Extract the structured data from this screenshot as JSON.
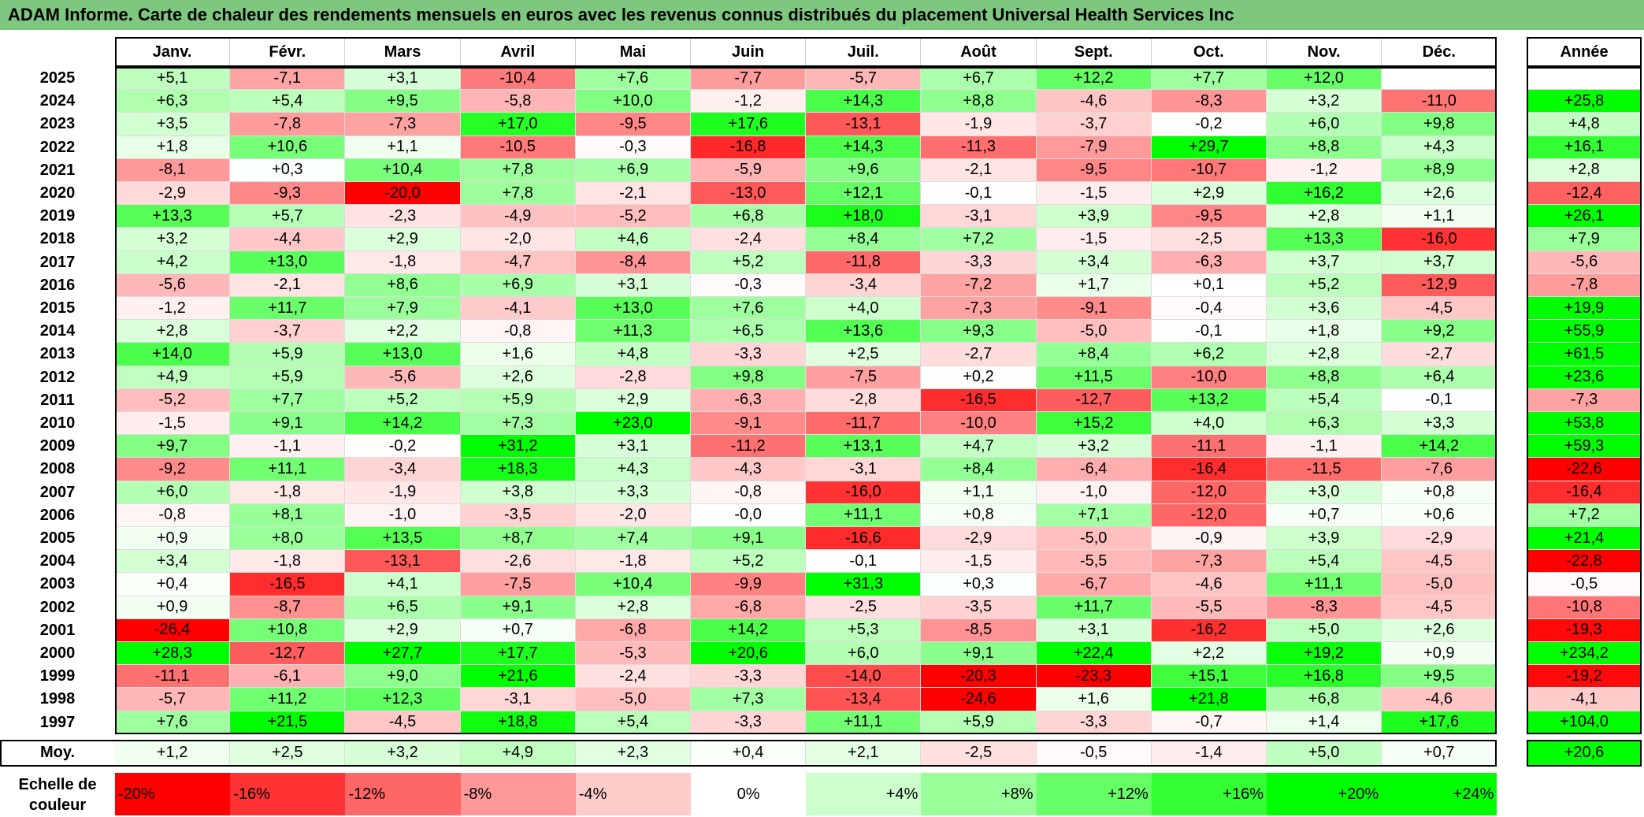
{
  "title": "ADAM Informe. Carte de chaleur des rendements mensuels en euros avec les revenus connus distribués du placement Universal Health Services Inc",
  "chart_data": {
    "type": "heatmap",
    "months": [
      "Janv.",
      "Févr.",
      "Mars",
      "Avril",
      "Mai",
      "Juin",
      "Juil.",
      "Août",
      "Sept.",
      "Oct.",
      "Nov.",
      "Déc."
    ],
    "year_header": "Année",
    "rows": [
      {
        "year": "2025",
        "values": [
          "+5,1",
          "-7,1",
          "+3,1",
          "-10,4",
          "+7,6",
          "-7,7",
          "-5,7",
          "+6,7",
          "+12,2",
          "+7,7",
          "+12,0",
          ""
        ],
        "annual": ""
      },
      {
        "year": "2024",
        "values": [
          "+6,3",
          "+5,4",
          "+9,5",
          "-5,8",
          "+10,0",
          "-1,2",
          "+14,3",
          "+8,8",
          "-4,6",
          "-8,3",
          "+3,2",
          "-11,0"
        ],
        "annual": "+25,8"
      },
      {
        "year": "2023",
        "values": [
          "+3,5",
          "-7,8",
          "-7,3",
          "+17,0",
          "-9,5",
          "+17,6",
          "-13,1",
          "-1,9",
          "-3,7",
          "-0,2",
          "+6,0",
          "+9,8"
        ],
        "annual": "+4,8"
      },
      {
        "year": "2022",
        "values": [
          "+1,8",
          "+10,6",
          "+1,1",
          "-10,5",
          "-0,3",
          "-16,8",
          "+14,3",
          "-11,3",
          "-7,9",
          "+29,7",
          "+8,8",
          "+4,3"
        ],
        "annual": "+16,1"
      },
      {
        "year": "2021",
        "values": [
          "-8,1",
          "+0,3",
          "+10,4",
          "+7,8",
          "+6,9",
          "-5,9",
          "+9,6",
          "-2,1",
          "-9,5",
          "-10,7",
          "-1,2",
          "+8,9"
        ],
        "annual": "+2,8"
      },
      {
        "year": "2020",
        "values": [
          "-2,9",
          "-9,3",
          "-20,0",
          "+7,8",
          "-2,1",
          "-13,0",
          "+12,1",
          "-0,1",
          "-1,5",
          "+2,9",
          "+16,2",
          "+2,6"
        ],
        "annual": "-12,4"
      },
      {
        "year": "2019",
        "values": [
          "+13,3",
          "+5,7",
          "-2,3",
          "-4,9",
          "-5,2",
          "+6,8",
          "+18,0",
          "-3,1",
          "+3,9",
          "-9,5",
          "+2,8",
          "+1,1"
        ],
        "annual": "+26,1"
      },
      {
        "year": "2018",
        "values": [
          "+3,2",
          "-4,4",
          "+2,9",
          "-2,0",
          "+4,6",
          "-2,4",
          "+8,4",
          "+7,2",
          "-1,5",
          "-2,5",
          "+13,3",
          "-16,0"
        ],
        "annual": "+7,9"
      },
      {
        "year": "2017",
        "values": [
          "+4,2",
          "+13,0",
          "-1,8",
          "-4,7",
          "-8,4",
          "+5,2",
          "-11,8",
          "-3,3",
          "+3,4",
          "-6,3",
          "+3,7",
          "+3,7"
        ],
        "annual": "-5,6"
      },
      {
        "year": "2016",
        "values": [
          "-5,6",
          "-2,1",
          "+8,6",
          "+6,9",
          "+3,1",
          "-0,3",
          "-3,4",
          "-7,2",
          "+1,7",
          "+0,1",
          "+5,2",
          "-12,9"
        ],
        "annual": "-7,8"
      },
      {
        "year": "2015",
        "values": [
          "-1,2",
          "+11,7",
          "+7,9",
          "-4,1",
          "+13,0",
          "+7,6",
          "+4,0",
          "-7,3",
          "-9,1",
          "-0,4",
          "+3,6",
          "-4,5"
        ],
        "annual": "+19,9"
      },
      {
        "year": "2014",
        "values": [
          "+2,8",
          "-3,7",
          "+2,2",
          "-0,8",
          "+11,3",
          "+6,5",
          "+13,6",
          "+9,3",
          "-5,0",
          "-0,1",
          "+1,8",
          "+9,2"
        ],
        "annual": "+55,9"
      },
      {
        "year": "2013",
        "values": [
          "+14,0",
          "+5,9",
          "+13,0",
          "+1,6",
          "+4,8",
          "-3,3",
          "+2,5",
          "-2,7",
          "+8,4",
          "+6,2",
          "+2,8",
          "-2,7"
        ],
        "annual": "+61,5"
      },
      {
        "year": "2012",
        "values": [
          "+4,9",
          "+5,9",
          "-5,6",
          "+2,6",
          "-2,8",
          "+9,8",
          "-7,5",
          "+0,2",
          "+11,5",
          "-10,0",
          "+8,8",
          "+6,4"
        ],
        "annual": "+23,6"
      },
      {
        "year": "2011",
        "values": [
          "-5,2",
          "+7,7",
          "+5,2",
          "+5,9",
          "+2,9",
          "-6,3",
          "-2,8",
          "-16,5",
          "-12,7",
          "+13,2",
          "+5,4",
          "-0,1"
        ],
        "annual": "-7,3"
      },
      {
        "year": "2010",
        "values": [
          "-1,5",
          "+9,1",
          "+14,2",
          "+7,3",
          "+23,0",
          "-9,1",
          "-11,7",
          "-10,0",
          "+15,2",
          "+4,0",
          "+6,3",
          "+3,3"
        ],
        "annual": "+53,8"
      },
      {
        "year": "2009",
        "values": [
          "+9,7",
          "-1,1",
          "-0,2",
          "+31,2",
          "+3,1",
          "-11,2",
          "+13,1",
          "+4,7",
          "+3,2",
          "-11,1",
          "-1,1",
          "+14,2"
        ],
        "annual": "+59,3"
      },
      {
        "year": "2008",
        "values": [
          "-9,2",
          "+11,1",
          "-3,4",
          "+18,3",
          "+4,3",
          "-4,3",
          "-3,1",
          "+8,4",
          "-6,4",
          "-16,4",
          "-11,5",
          "-7,6"
        ],
        "annual": "-22,6"
      },
      {
        "year": "2007",
        "values": [
          "+6,0",
          "-1,8",
          "-1,9",
          "+3,8",
          "+3,3",
          "-0,8",
          "-16,0",
          "+1,1",
          "-1,0",
          "-12,0",
          "+3,0",
          "+0,8"
        ],
        "annual": "-16,4"
      },
      {
        "year": "2006",
        "values": [
          "-0,8",
          "+8,1",
          "-1,0",
          "-3,5",
          "-2,0",
          "-0,0",
          "+11,1",
          "+0,8",
          "+7,1",
          "-12,0",
          "+0,7",
          "+0,6"
        ],
        "annual": "+7,2"
      },
      {
        "year": "2005",
        "values": [
          "+0,9",
          "+8,0",
          "+13,5",
          "+8,7",
          "+7,4",
          "+9,1",
          "-16,6",
          "-2,9",
          "-5,0",
          "-0,9",
          "+3,9",
          "-2,9"
        ],
        "annual": "+21,4"
      },
      {
        "year": "2004",
        "values": [
          "+3,4",
          "-1,8",
          "-13,1",
          "-2,6",
          "-1,8",
          "+5,2",
          "-0,1",
          "-1,5",
          "-5,5",
          "-7,3",
          "+5,4",
          "-4,5"
        ],
        "annual": "-22,8"
      },
      {
        "year": "2003",
        "values": [
          "+0,4",
          "-16,5",
          "+4,1",
          "-7,5",
          "+10,4",
          "-9,9",
          "+31,3",
          "+0,3",
          "-6,7",
          "-4,6",
          "+11,1",
          "-5,0"
        ],
        "annual": "-0,5"
      },
      {
        "year": "2002",
        "values": [
          "+0,9",
          "-8,7",
          "+6,5",
          "+9,1",
          "+2,8",
          "-6,8",
          "-2,5",
          "-3,5",
          "+11,7",
          "-5,5",
          "-8,3",
          "-4,5"
        ],
        "annual": "-10,8"
      },
      {
        "year": "2001",
        "values": [
          "-26,4",
          "+10,8",
          "+2,9",
          "+0,7",
          "-6,8",
          "+14,2",
          "+5,3",
          "-8,5",
          "+3,1",
          "-16,2",
          "+5,0",
          "+2,6"
        ],
        "annual": "-19,3"
      },
      {
        "year": "2000",
        "values": [
          "+28,3",
          "-12,7",
          "+27,7",
          "+17,7",
          "-5,3",
          "+20,6",
          "+6,0",
          "+9,1",
          "+22,4",
          "+2,2",
          "+19,2",
          "+0,9"
        ],
        "annual": "+234,2"
      },
      {
        "year": "1999",
        "values": [
          "-11,1",
          "-6,1",
          "+9,0",
          "+21,6",
          "-2,4",
          "-3,3",
          "-14,0",
          "-20,3",
          "-23,3",
          "+15,1",
          "+16,8",
          "+9,5"
        ],
        "annual": "-19,2"
      },
      {
        "year": "1998",
        "values": [
          "-5,7",
          "+11,2",
          "+12,3",
          "-3,1",
          "-5,0",
          "+7,3",
          "-13,4",
          "-24,6",
          "+1,6",
          "+21,8",
          "+6,8",
          "-4,6"
        ],
        "annual": "-4,1"
      },
      {
        "year": "1997",
        "values": [
          "+7,6",
          "+21,5",
          "-4,5",
          "+18,8",
          "+5,4",
          "-3,3",
          "+11,1",
          "+5,9",
          "-3,3",
          "-0,7",
          "+1,4",
          "+17,6"
        ],
        "annual": "+104,0"
      }
    ],
    "average": {
      "label": "Moy.",
      "values": [
        "+1,2",
        "+2,5",
        "+3,2",
        "+4,9",
        "+2,3",
        "+0,4",
        "+2,1",
        "-2,5",
        "-0,5",
        "-1,4",
        "+5,0",
        "+0,7"
      ],
      "annual": "+20,6"
    },
    "color_scale": {
      "label": "Echelle de couleur",
      "min_color": "#ff0000",
      "zero_color": "#ffffff",
      "max_color": "#00ff00",
      "range": [
        -20,
        24
      ],
      "stops": [
        "-20%",
        "-16%",
        "-12%",
        "-8%",
        "-4%",
        "0%",
        "+4%",
        "+8%",
        "+12%",
        "+16%",
        "+20%",
        "+24%"
      ]
    }
  }
}
